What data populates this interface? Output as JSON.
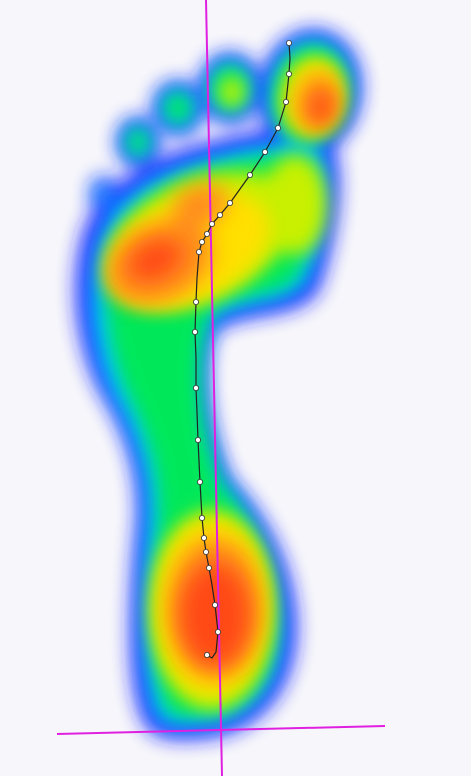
{
  "view": {
    "background_color": "#f7f7fb",
    "description_free": true
  },
  "pressure_map": {
    "colormap": [
      "#1a1aff",
      "#00c8ff",
      "#00e85a",
      "#c8f000",
      "#ffe000",
      "#ff8c1a",
      "#ff4a14"
    ],
    "regions": [
      "heel",
      "midfoot-lateral",
      "forefoot",
      "hallux",
      "toe-2",
      "toe-3",
      "toe-4",
      "toe-5"
    ]
  },
  "overlay": {
    "axis_color": "#e020e0",
    "cop_line_color": "#222222",
    "cop_point_fill": "#ffffff",
    "cop_point_stroke": "#333333",
    "cop_point_count": 26
  }
}
